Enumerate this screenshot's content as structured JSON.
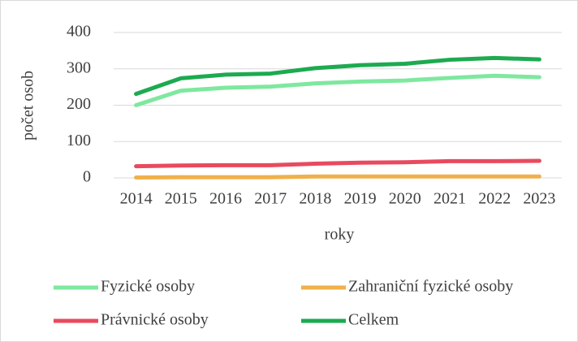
{
  "chart_data": {
    "type": "line",
    "x_label": "roky",
    "y_label": "počet osob",
    "categories": [
      "2014",
      "2015",
      "2016",
      "2017",
      "2018",
      "2019",
      "2020",
      "2021",
      "2022",
      "2023"
    ],
    "series": [
      {
        "name": "Fyzické osoby",
        "color": "#7ee89f",
        "values": [
          200,
          240,
          248,
          251,
          260,
          265,
          268,
          275,
          281,
          277
        ]
      },
      {
        "name": "Zahraniční fyzické osoby",
        "color": "#f0b04a",
        "values": [
          1,
          2,
          2,
          2,
          4,
          4,
          4,
          4,
          4,
          4
        ]
      },
      {
        "name": "Právnické osoby",
        "color": "#e84a5f",
        "values": [
          32,
          34,
          35,
          35,
          39,
          42,
          43,
          46,
          46,
          47
        ]
      },
      {
        "name": "Celkem",
        "color": "#1daa50",
        "values": [
          231,
          274,
          284,
          287,
          302,
          310,
          314,
          325,
          330,
          326
        ]
      }
    ],
    "ylim": [
      0,
      400
    ],
    "yticks": [
      0,
      100,
      200,
      300,
      400
    ],
    "grid": true,
    "legend": "bottom"
  }
}
